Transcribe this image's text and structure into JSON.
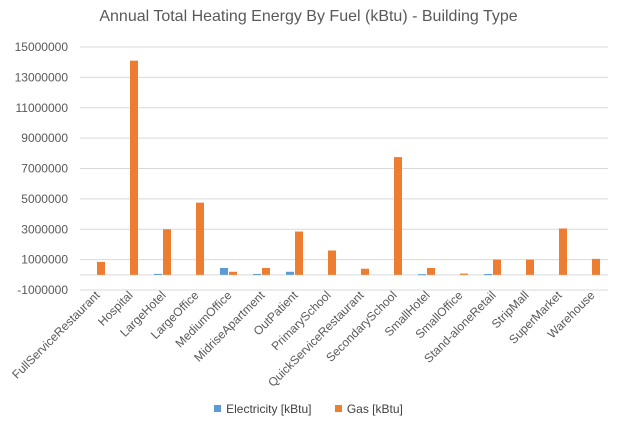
{
  "chart_data": {
    "type": "bar",
    "title": "Annual Total Heating Energy By Fuel (kBtu) - Building Type",
    "xlabel": "",
    "ylabel": "",
    "ylim": [
      -1000000,
      15000000
    ],
    "yticks": [
      -1000000,
      1000000,
      3000000,
      5000000,
      7000000,
      9000000,
      11000000,
      13000000,
      15000000
    ],
    "ytick_labels": [
      "-1000000",
      "1000000",
      "3000000",
      "5000000",
      "7000000",
      "9000000",
      "11000000",
      "13000000",
      "15000000"
    ],
    "grid": true,
    "legend_position": "bottom",
    "categories": [
      "FullServiceRestaurant",
      "Hospital",
      "LargeHotel",
      "LargeOffice",
      "MediumOffice",
      "MidriseApartment",
      "OutPatient",
      "PrimarySchool",
      "QuickServiceRestaurant",
      "SecondarySchool",
      "SmallHotel",
      "SmallOffice",
      "Stand-aloneRetail",
      "StripMall",
      "SuperMarket",
      "Warehouse"
    ],
    "series": [
      {
        "name": "Electricity [kBtu]",
        "color": "#5b9bd5",
        "values": [
          0,
          0,
          60000,
          0,
          450000,
          50000,
          200000,
          0,
          0,
          0,
          40000,
          0,
          50000,
          0,
          0,
          0
        ]
      },
      {
        "name": "Gas [kBtu]",
        "color": "#ed7d31",
        "values": [
          850000,
          14100000,
          3000000,
          4750000,
          200000,
          450000,
          2850000,
          1600000,
          400000,
          7750000,
          450000,
          80000,
          1000000,
          1000000,
          3050000,
          1050000
        ]
      }
    ]
  }
}
